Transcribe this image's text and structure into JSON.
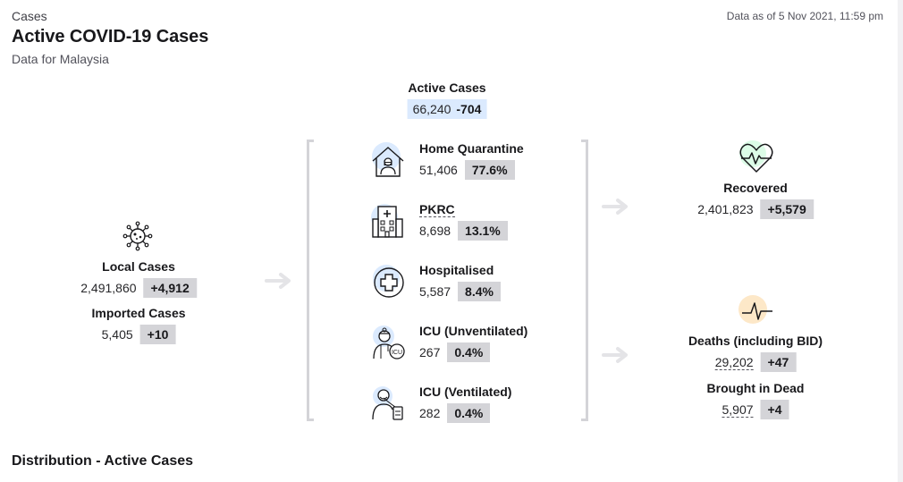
{
  "header": {
    "eyebrow": "Cases",
    "title": "Active COVID-19 Cases",
    "subtitle": "Data for Malaysia",
    "as_of": "Data as of 5 Nov 2021, 11:59 pm"
  },
  "active": {
    "label": "Active Cases",
    "value": "66,240",
    "change": "-704"
  },
  "local": {
    "label": "Local Cases",
    "value": "2,491,860",
    "change": "+4,912",
    "icon": "virus-icon"
  },
  "imported": {
    "label": "Imported Cases",
    "value": "5,405",
    "change": "+10"
  },
  "categories": [
    {
      "label": "Home Quarantine",
      "value": "51,406",
      "pct": "77.6%",
      "icon": "home-quarantine-icon"
    },
    {
      "label": "PKRC",
      "value": "8,698",
      "pct": "13.1%",
      "icon": "building-icon"
    },
    {
      "label": "Hospitalised",
      "value": "5,587",
      "pct": "8.4%",
      "icon": "medical-cross-icon"
    },
    {
      "label": "ICU (Unventilated)",
      "value": "267",
      "pct": "0.4%",
      "icon": "icu-doctor-icon"
    },
    {
      "label": "ICU (Ventilated)",
      "value": "282",
      "pct": "0.4%",
      "icon": "ventilated-patient-icon"
    }
  ],
  "recovered": {
    "label": "Recovered",
    "value": "2,401,823",
    "change": "+5,579",
    "icon": "heart-pulse-icon"
  },
  "deaths": {
    "label": "Deaths (including BID)",
    "value": "29,202",
    "change": "+47",
    "icon": "pulse-line-icon"
  },
  "bid": {
    "label": "Brought in Dead",
    "value": "5,907",
    "change": "+4"
  },
  "distribution": {
    "title": "Distribution - Active Cases"
  },
  "colors": {
    "chip_grey": "#d4d4d8",
    "chip_blue": "#dbeafe",
    "recovered_bg": "#dcfce7",
    "deaths_bg": "#fde8c8"
  }
}
